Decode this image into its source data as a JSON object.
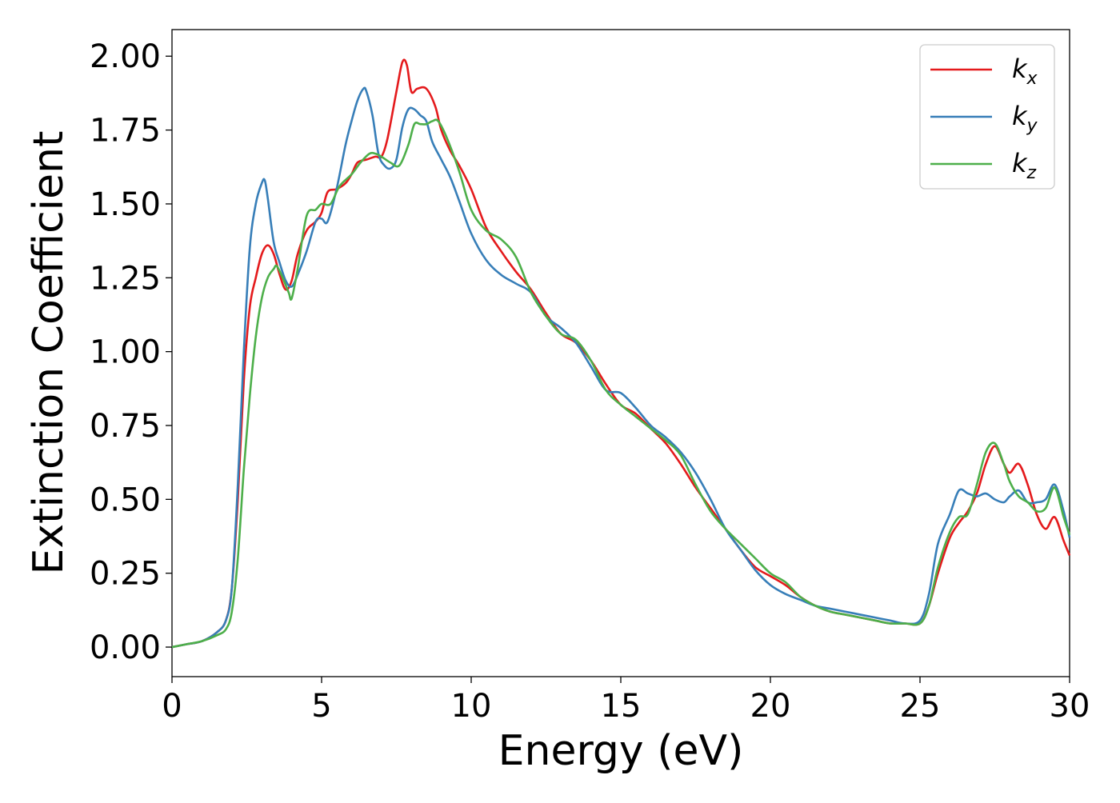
{
  "chart_data": {
    "type": "line",
    "title": "",
    "xlabel": "Energy (eV)",
    "ylabel": "Extinction Coefficient",
    "xlim": [
      0,
      30
    ],
    "ylim": [
      -0.1,
      2.09
    ],
    "xticks": [
      0,
      5,
      10,
      15,
      20,
      25,
      30
    ],
    "xtick_labels": [
      "0",
      "5",
      "10",
      "15",
      "20",
      "25",
      "30"
    ],
    "yticks": [
      0,
      0.25,
      0.5,
      0.75,
      1.0,
      1.25,
      1.5,
      1.75,
      2.0
    ],
    "ytick_labels": [
      "0.00",
      "0.25",
      "0.50",
      "0.75",
      "1.00",
      "1.25",
      "1.50",
      "1.75",
      "2.00"
    ],
    "grid": false,
    "legend_position": "top-right",
    "series": [
      {
        "name": "k",
        "subscript": "x",
        "color": "#e41a1c",
        "x": [
          0,
          0.5,
          1.0,
          1.5,
          1.8,
          2.0,
          2.2,
          2.4,
          2.6,
          2.8,
          3.0,
          3.2,
          3.4,
          3.6,
          3.8,
          4.0,
          4.2,
          4.5,
          4.8,
          5.0,
          5.2,
          5.5,
          5.8,
          6.0,
          6.2,
          6.5,
          6.8,
          7.0,
          7.2,
          7.5,
          7.7,
          7.85,
          8.0,
          8.2,
          8.5,
          8.8,
          9.0,
          9.3,
          9.6,
          10.0,
          10.5,
          11.0,
          11.5,
          12.0,
          12.5,
          13.0,
          13.5,
          14.0,
          14.5,
          15.0,
          15.5,
          16.0,
          16.5,
          17.0,
          17.5,
          18.0,
          18.5,
          19.0,
          19.5,
          20.0,
          20.5,
          21.0,
          21.5,
          22.0,
          22.5,
          23.0,
          23.5,
          24.0,
          24.5,
          25.0,
          25.3,
          25.6,
          26.0,
          26.3,
          26.6,
          26.9,
          27.2,
          27.5,
          27.8,
          28.0,
          28.3,
          28.6,
          28.9,
          29.2,
          29.5,
          29.8,
          30.0
        ],
        "y": [
          0.0,
          0.01,
          0.02,
          0.05,
          0.09,
          0.2,
          0.5,
          0.9,
          1.15,
          1.25,
          1.33,
          1.36,
          1.33,
          1.26,
          1.21,
          1.24,
          1.33,
          1.41,
          1.44,
          1.47,
          1.54,
          1.55,
          1.57,
          1.6,
          1.64,
          1.65,
          1.66,
          1.66,
          1.72,
          1.88,
          1.98,
          1.97,
          1.88,
          1.89,
          1.89,
          1.83,
          1.75,
          1.68,
          1.63,
          1.55,
          1.42,
          1.34,
          1.27,
          1.21,
          1.13,
          1.06,
          1.03,
          0.97,
          0.89,
          0.82,
          0.79,
          0.74,
          0.69,
          0.62,
          0.54,
          0.47,
          0.4,
          0.33,
          0.27,
          0.24,
          0.21,
          0.17,
          0.14,
          0.12,
          0.11,
          0.1,
          0.09,
          0.08,
          0.08,
          0.08,
          0.14,
          0.25,
          0.37,
          0.42,
          0.46,
          0.52,
          0.62,
          0.68,
          0.62,
          0.59,
          0.62,
          0.55,
          0.45,
          0.4,
          0.44,
          0.36,
          0.31
        ]
      },
      {
        "name": "k",
        "subscript": "y",
        "color": "#377eb8",
        "x": [
          0,
          0.5,
          1.0,
          1.5,
          1.8,
          2.0,
          2.2,
          2.4,
          2.6,
          2.8,
          3.0,
          3.1,
          3.2,
          3.4,
          3.6,
          3.8,
          4.0,
          4.2,
          4.5,
          4.8,
          5.0,
          5.2,
          5.5,
          5.8,
          6.0,
          6.2,
          6.4,
          6.5,
          6.7,
          6.9,
          7.1,
          7.3,
          7.5,
          7.7,
          7.9,
          8.1,
          8.3,
          8.5,
          8.7,
          9.0,
          9.3,
          9.6,
          10.0,
          10.5,
          11.0,
          11.5,
          12.0,
          12.5,
          13.0,
          13.5,
          14.0,
          14.5,
          15.0,
          15.5,
          16.0,
          16.5,
          17.0,
          17.5,
          18.0,
          18.5,
          19.0,
          19.5,
          20.0,
          20.5,
          21.0,
          21.5,
          22.0,
          22.5,
          23.0,
          23.5,
          24.0,
          24.5,
          25.0,
          25.3,
          25.6,
          26.0,
          26.3,
          26.6,
          26.9,
          27.2,
          27.5,
          27.8,
          28.0,
          28.3,
          28.6,
          28.9,
          29.2,
          29.5,
          29.8,
          30.0
        ],
        "y": [
          0.0,
          0.01,
          0.02,
          0.05,
          0.09,
          0.2,
          0.55,
          1.0,
          1.35,
          1.5,
          1.57,
          1.58,
          1.52,
          1.37,
          1.3,
          1.24,
          1.22,
          1.26,
          1.34,
          1.44,
          1.45,
          1.44,
          1.55,
          1.7,
          1.78,
          1.85,
          1.89,
          1.88,
          1.8,
          1.67,
          1.63,
          1.62,
          1.65,
          1.76,
          1.82,
          1.82,
          1.8,
          1.78,
          1.71,
          1.65,
          1.59,
          1.51,
          1.4,
          1.31,
          1.26,
          1.23,
          1.2,
          1.12,
          1.08,
          1.03,
          0.95,
          0.87,
          0.86,
          0.81,
          0.75,
          0.71,
          0.66,
          0.59,
          0.5,
          0.4,
          0.33,
          0.26,
          0.21,
          0.18,
          0.16,
          0.14,
          0.13,
          0.12,
          0.11,
          0.1,
          0.09,
          0.08,
          0.09,
          0.18,
          0.35,
          0.45,
          0.53,
          0.52,
          0.51,
          0.52,
          0.5,
          0.49,
          0.51,
          0.53,
          0.49,
          0.49,
          0.5,
          0.55,
          0.46,
          0.37
        ]
      },
      {
        "name": "k",
        "subscript": "z",
        "color": "#4daf4a",
        "x": [
          0,
          0.5,
          1.0,
          1.5,
          1.8,
          2.0,
          2.2,
          2.4,
          2.6,
          2.8,
          3.0,
          3.2,
          3.4,
          3.5,
          3.7,
          3.9,
          4.0,
          4.2,
          4.5,
          4.8,
          5.0,
          5.3,
          5.6,
          6.0,
          6.3,
          6.6,
          6.8,
          7.0,
          7.3,
          7.6,
          7.9,
          8.1,
          8.3,
          8.5,
          8.7,
          8.9,
          9.2,
          9.6,
          10.0,
          10.5,
          11.0,
          11.5,
          12.0,
          12.5,
          13.0,
          13.5,
          14.0,
          14.5,
          15.0,
          15.5,
          16.0,
          16.5,
          17.0,
          17.5,
          18.0,
          18.5,
          19.0,
          19.5,
          20.0,
          20.5,
          21.0,
          21.5,
          22.0,
          22.5,
          23.0,
          23.5,
          24.0,
          24.5,
          25.0,
          25.3,
          25.6,
          26.0,
          26.3,
          26.6,
          26.9,
          27.2,
          27.5,
          27.8,
          28.0,
          28.3,
          28.6,
          28.9,
          29.2,
          29.5,
          29.8,
          30.0
        ],
        "y": [
          0.0,
          0.01,
          0.02,
          0.04,
          0.06,
          0.12,
          0.3,
          0.6,
          0.85,
          1.05,
          1.18,
          1.25,
          1.28,
          1.29,
          1.25,
          1.2,
          1.18,
          1.28,
          1.46,
          1.48,
          1.5,
          1.5,
          1.56,
          1.6,
          1.64,
          1.67,
          1.67,
          1.66,
          1.64,
          1.63,
          1.7,
          1.77,
          1.77,
          1.77,
          1.78,
          1.78,
          1.72,
          1.61,
          1.48,
          1.41,
          1.38,
          1.32,
          1.2,
          1.12,
          1.06,
          1.04,
          0.97,
          0.87,
          0.82,
          0.78,
          0.74,
          0.7,
          0.65,
          0.55,
          0.46,
          0.4,
          0.35,
          0.3,
          0.25,
          0.22,
          0.17,
          0.14,
          0.12,
          0.11,
          0.1,
          0.09,
          0.08,
          0.08,
          0.08,
          0.14,
          0.27,
          0.39,
          0.44,
          0.45,
          0.55,
          0.66,
          0.69,
          0.62,
          0.56,
          0.51,
          0.49,
          0.46,
          0.47,
          0.54,
          0.44,
          0.38
        ]
      }
    ]
  }
}
